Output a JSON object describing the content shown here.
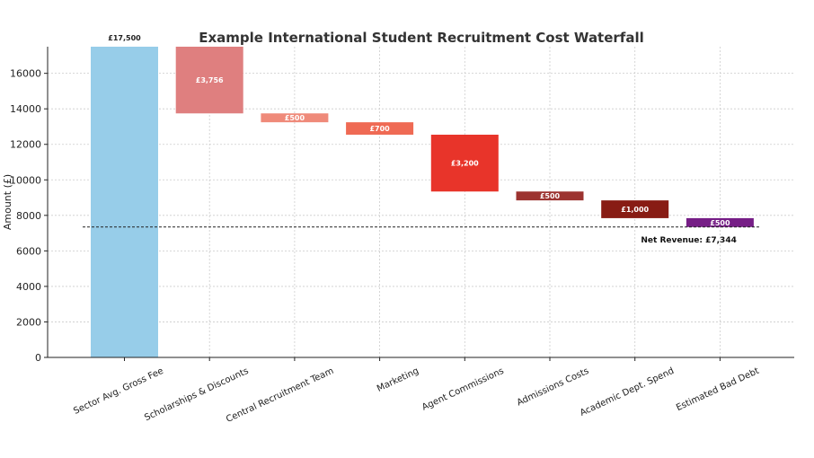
{
  "chart_data": {
    "type": "bar",
    "subtype": "waterfall",
    "title": "Example International Student Recruitment Cost Waterfall",
    "xlabel": "",
    "ylabel": "Amount (£)",
    "ylim": [
      0,
      17500
    ],
    "yticks": [
      0,
      2000,
      4000,
      6000,
      8000,
      10000,
      12000,
      14000,
      16000
    ],
    "grid": true,
    "categories": [
      "Sector Avg. Gross Fee",
      "Scholarships & Discounts",
      "Central Recruitment Team",
      "Marketing",
      "Agent Commissions",
      "Admissions Costs",
      "Academic Dept. Spend",
      "Estimated Bad Debt"
    ],
    "values": [
      17500,
      -3756,
      -500,
      -700,
      -3200,
      -500,
      -1000,
      -500
    ],
    "data_labels": [
      "£17,500",
      "£3,756",
      "£500",
      "£700",
      "£3,200",
      "£500",
      "£1,000",
      "£500"
    ],
    "colors": [
      "#97cde9",
      "#df7f7f",
      "#ef8a7a",
      "#ef6a54",
      "#e8342a",
      "#9c3330",
      "#881c14",
      "#761e86"
    ],
    "net_revenue": {
      "value": 7344,
      "label": "Net Revenue: £7,344"
    }
  }
}
